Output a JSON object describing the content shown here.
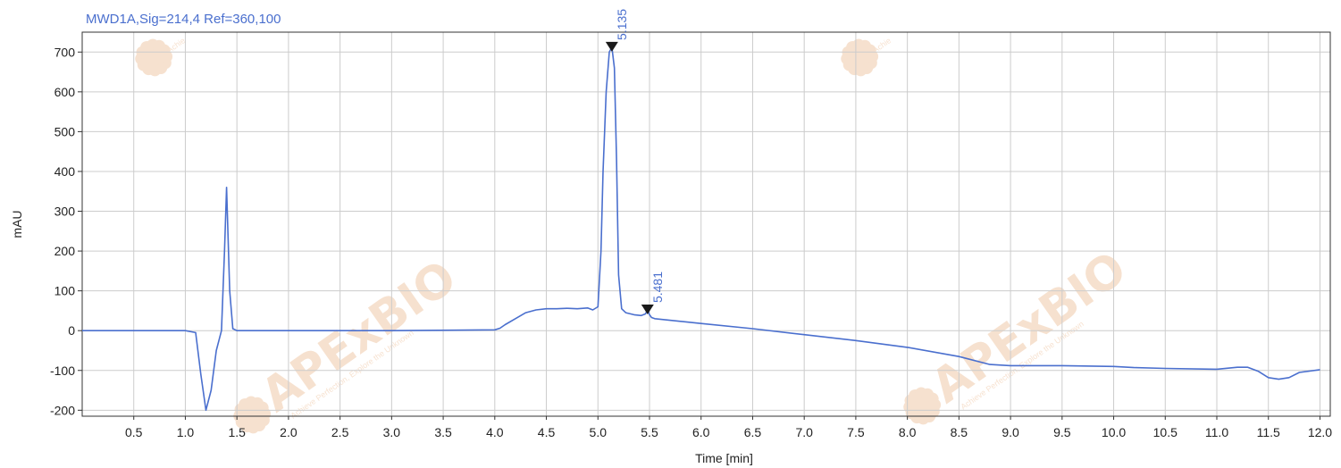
{
  "chart_data": {
    "type": "line",
    "title": "MWD1A,Sig=214,4  Ref=360,100",
    "xlabel": "Time [min]",
    "ylabel": "mAU",
    "xlim": [
      0.0,
      12.1
    ],
    "ylim": [
      -215,
      750
    ],
    "x_ticks": [
      0.5,
      1.0,
      1.5,
      2.0,
      2.5,
      3.0,
      3.5,
      4.0,
      4.5,
      5.0,
      5.5,
      6.0,
      6.5,
      7.0,
      7.5,
      8.0,
      8.5,
      9.0,
      9.5,
      10.0,
      10.5,
      11.0,
      11.5,
      12.0
    ],
    "x_tick_labels": [
      "0.5",
      "1.0",
      "1.5",
      "2.0",
      "2.5",
      "3.0",
      "3.5",
      "4.0",
      "4.5",
      "5.0",
      "5.5",
      "6.0",
      "6.5",
      "7.0",
      "7.5",
      "8.0",
      "8.5",
      "9.0",
      "9.5",
      "10.0",
      "10.5",
      "11.0",
      "11.5",
      "12.0"
    ],
    "y_ticks": [
      -200,
      -100,
      0,
      100,
      200,
      300,
      400,
      500,
      600,
      700
    ],
    "y_tick_labels": [
      "-200",
      "-100",
      "0",
      "100",
      "200",
      "300",
      "400",
      "500",
      "600",
      "700"
    ],
    "grid": true,
    "series": [
      {
        "color": "#4a6fce",
        "x": [
          0.0,
          1.0,
          1.1,
          1.15,
          1.2,
          1.25,
          1.3,
          1.35,
          1.38,
          1.4,
          1.43,
          1.46,
          1.5,
          2.0,
          3.0,
          4.0,
          4.05,
          4.1,
          4.2,
          4.3,
          4.4,
          4.5,
          4.6,
          4.7,
          4.8,
          4.9,
          4.95,
          5.0,
          5.03,
          5.05,
          5.08,
          5.11,
          5.135,
          5.16,
          5.18,
          5.2,
          5.23,
          5.27,
          5.35,
          5.42,
          5.46,
          5.481,
          5.5,
          5.52,
          5.55,
          6.0,
          6.5,
          7.0,
          7.5,
          8.0,
          8.5,
          8.8,
          9.0,
          9.5,
          10.0,
          10.2,
          10.5,
          11.0,
          11.2,
          11.3,
          11.4,
          11.5,
          11.6,
          11.7,
          11.8,
          12.0
        ],
        "y": [
          0,
          0,
          -5,
          -110,
          -200,
          -150,
          -50,
          0,
          200,
          360,
          100,
          5,
          0,
          0,
          0,
          2,
          6,
          15,
          30,
          45,
          52,
          55,
          55,
          56,
          55,
          57,
          52,
          60,
          200,
          400,
          600,
          700,
          712,
          660,
          430,
          140,
          55,
          45,
          40,
          38,
          42,
          52,
          40,
          33,
          30,
          18,
          5,
          -10,
          -25,
          -42,
          -65,
          -85,
          -88,
          -88,
          -90,
          -93,
          -95,
          -97,
          -92,
          -92,
          -102,
          -118,
          -122,
          -118,
          -105,
          -98
        ]
      }
    ],
    "peaks": [
      {
        "x": 5.135,
        "y": 712,
        "label": "5.135"
      },
      {
        "x": 5.481,
        "y": 52,
        "label": "5.481"
      }
    ]
  },
  "watermark": {
    "brand": "APExBIO",
    "tagline": "Achieve Perfection, Explore the Unknown",
    "tagline_short": "Achie"
  },
  "colors": {
    "trace": "#4a6fce",
    "title": "#4a6fce",
    "grid": "#cccccc",
    "axis": "#333333",
    "peak_marker": "#1a1a1a",
    "watermark": "#f0c9a8"
  }
}
